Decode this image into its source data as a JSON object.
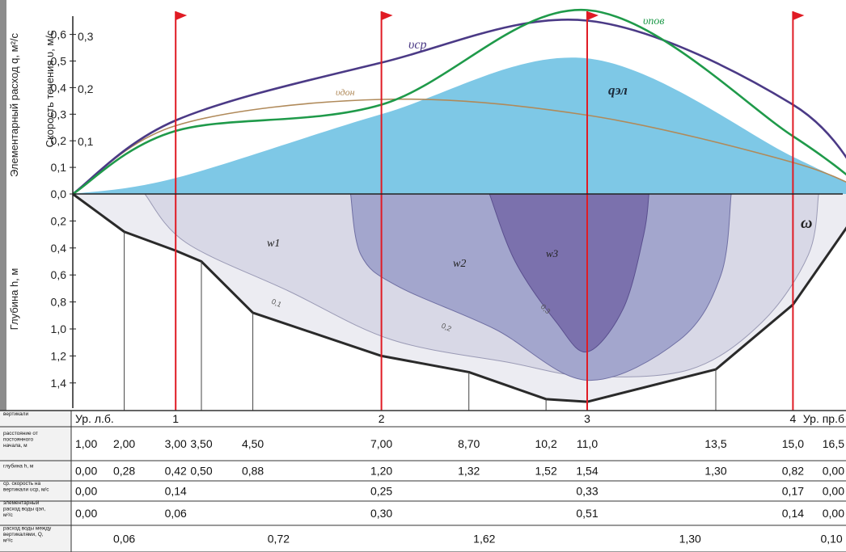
{
  "chart_data": {
    "type": "area",
    "y_axis_top": {
      "label_q": "Элементарный расход q, м²/с",
      "label_v": "Скорость течения υ, м/с",
      "ticks_q": [
        "0,6",
        "0,5",
        "0,4",
        "0,3",
        "0,2",
        "0,1",
        "0,0"
      ],
      "ticks_v": [
        "0,3",
        "0,2",
        "0,1"
      ]
    },
    "y_axis_bottom": {
      "label": "Глубина h, м",
      "ticks": [
        "0,2",
        "0,4",
        "0,6",
        "0,8",
        "1,0",
        "1,2",
        "1,4"
      ]
    },
    "series_labels": {
      "v_sr": "υср",
      "v_pov": "υпов",
      "v_dn": "υдон",
      "q_el": "qэл",
      "omega": "ω",
      "w1": "w1",
      "w2": "w2",
      "w3": "w3"
    },
    "isotach_labels": [
      "0,1",
      "0,2",
      "0,3"
    ],
    "q_curve": {
      "x": [
        1.0,
        3.0,
        7.0,
        11.0,
        15.0,
        16.5
      ],
      "y": [
        0.0,
        0.06,
        0.3,
        0.51,
        0.14,
        0.0
      ]
    },
    "v_sr_curve": {
      "x": [
        1.0,
        3.0,
        7.0,
        11.0,
        15.0,
        16.5
      ],
      "y": [
        0.0,
        0.14,
        0.25,
        0.33,
        0.17,
        0.0
      ]
    },
    "v_pov_curve": {
      "x": [
        1.0,
        3.0,
        7.0,
        11.0,
        15.0,
        16.5
      ],
      "y": [
        0.0,
        0.12,
        0.17,
        0.35,
        0.11,
        0.0
      ]
    },
    "v_dn_curve": {
      "x": [
        1.0,
        3.0,
        7.0,
        11.0,
        15.0,
        16.5
      ],
      "y": [
        0.0,
        0.13,
        0.18,
        0.15,
        0.06,
        0.0
      ]
    },
    "bed_profile": {
      "x": [
        1.0,
        2.0,
        3.0,
        3.5,
        4.5,
        7.0,
        8.7,
        10.2,
        11.0,
        13.5,
        15.0,
        16.5
      ],
      "h": [
        0.0,
        0.28,
        0.42,
        0.5,
        0.88,
        1.2,
        1.32,
        1.52,
        1.54,
        1.3,
        0.82,
        0.0
      ]
    },
    "table": {
      "rows": [
        {
          "label": "вертикали",
          "cells": [
            {
              "x": 1.0,
              "t": "Ур. л.б."
            },
            {
              "x": 3.0,
              "t": "1"
            },
            {
              "x": 7.0,
              "t": "2"
            },
            {
              "x": 11.0,
              "t": "3"
            },
            {
              "x": 15.0,
              "t": "4"
            },
            {
              "x": 16.5,
              "t": "Ур. пр.б"
            }
          ]
        },
        {
          "label": "расстояние от постоянного начала, м",
          "cells": [
            {
              "x": 1.0,
              "t": "1,00"
            },
            {
              "x": 2.0,
              "t": "2,00"
            },
            {
              "x": 3.0,
              "t": "3,00"
            },
            {
              "x": 3.5,
              "t": "3,50"
            },
            {
              "x": 4.5,
              "t": "4,50"
            },
            {
              "x": 7.0,
              "t": "7,00"
            },
            {
              "x": 8.7,
              "t": "8,70"
            },
            {
              "x": 10.2,
              "t": "10,2"
            },
            {
              "x": 11.0,
              "t": "11,0"
            },
            {
              "x": 13.5,
              "t": "13,5"
            },
            {
              "x": 15.0,
              "t": "15,0"
            },
            {
              "x": 16.5,
              "t": "16,5"
            }
          ]
        },
        {
          "label": "глубина h, м",
          "cells": [
            {
              "x": 1.0,
              "t": "0,00"
            },
            {
              "x": 2.0,
              "t": "0,28"
            },
            {
              "x": 3.0,
              "t": "0,42"
            },
            {
              "x": 3.5,
              "t": "0,50"
            },
            {
              "x": 4.5,
              "t": "0,88"
            },
            {
              "x": 7.0,
              "t": "1,20"
            },
            {
              "x": 8.7,
              "t": "1,32"
            },
            {
              "x": 10.2,
              "t": "1,52"
            },
            {
              "x": 11.0,
              "t": "1,54"
            },
            {
              "x": 13.5,
              "t": "1,30"
            },
            {
              "x": 15.0,
              "t": "0,82"
            },
            {
              "x": 16.5,
              "t": "0,00"
            }
          ]
        },
        {
          "label": "ср. скорость на вертикали υср, м/с",
          "cells": [
            {
              "x": 1.0,
              "t": "0,00"
            },
            {
              "x": 3.0,
              "t": "0,14"
            },
            {
              "x": 7.0,
              "t": "0,25"
            },
            {
              "x": 11.0,
              "t": "0,33"
            },
            {
              "x": 15.0,
              "t": "0,17"
            },
            {
              "x": 16.5,
              "t": "0,00"
            }
          ]
        },
        {
          "label": "элементарный расход воды qэл, м²/с",
          "cells": [
            {
              "x": 1.0,
              "t": "0,00"
            },
            {
              "x": 3.0,
              "t": "0,06"
            },
            {
              "x": 7.0,
              "t": "0,30"
            },
            {
              "x": 11.0,
              "t": "0,51"
            },
            {
              "x": 15.0,
              "t": "0,14"
            },
            {
              "x": 16.5,
              "t": "0,00"
            }
          ]
        },
        {
          "label": "расход воды между вертикалями, Q, м³/с",
          "cells": [
            {
              "x": 2.0,
              "t": "0,06"
            },
            {
              "x": 5.0,
              "t": "0,72"
            },
            {
              "x": 9.0,
              "t": "1,62"
            },
            {
              "x": 13.0,
              "t": "1,30"
            },
            {
              "x": 15.75,
              "t": "0,10"
            }
          ]
        }
      ]
    },
    "colors": {
      "q_fill": "#7ec8e6",
      "v_sr": "#4b3a86",
      "v_pov": "#1f9a4a",
      "v_dn": "#b08a5a",
      "w1": "#d8d8e6",
      "w2": "#a3a6cd",
      "w3": "#7b71ad",
      "flag": "#e01b24",
      "bed": "#2a2a2a"
    }
  }
}
